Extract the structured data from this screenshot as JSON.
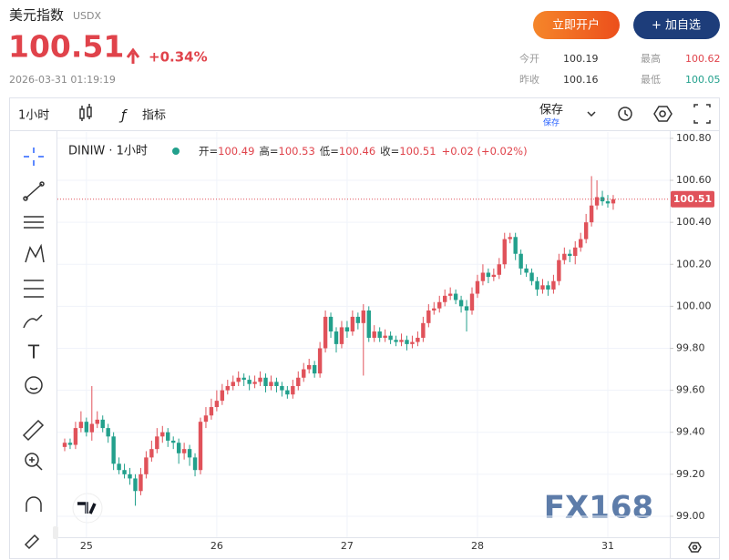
{
  "header": {
    "title": "美元指数",
    "code": "USDX",
    "price": "100.51",
    "change": "+0.34%",
    "time": "2026-03-31 01:19:19",
    "buttons": [
      "立即开户",
      "+ 加自选"
    ],
    "stats": [
      {
        "label": "今开",
        "value": "100.19"
      },
      {
        "label": "最高",
        "value": "100.62"
      },
      {
        "label": "昨收",
        "value": "100.16"
      },
      {
        "label": "最低",
        "value": "100.05"
      }
    ]
  },
  "toolbar": {
    "interval": "1小时",
    "indicators": "指标",
    "save": "保存",
    "save_sub": "保存"
  },
  "chart_data": {
    "type": "candlestick",
    "watermark": "FX168",
    "legend": {
      "symbol": "DINIW · 1小时",
      "labels": [
        "开=",
        "高=",
        "低=",
        "收="
      ],
      "change": "+0.02 (+0.02%)"
    },
    "up_color": "#e0525a",
    "down_color": "#22a08c",
    "grid": true,
    "last_price_line": true,
    "ylim": [
      98.9,
      100.83
    ],
    "yticks": [
      {
        "value": 99,
        "label": "99.00"
      },
      {
        "value": 99.2,
        "label": "99.20"
      },
      {
        "value": 99.4,
        "label": "99.40"
      },
      {
        "value": 99.6,
        "label": "99.60"
      },
      {
        "value": 99.8,
        "label": "99.80"
      },
      {
        "value": 100,
        "label": "100.00"
      },
      {
        "value": 100.2,
        "label": "100.20"
      },
      {
        "value": 100.4,
        "label": "100.40"
      },
      {
        "value": 100.6,
        "label": "100.60"
      },
      {
        "value": 100.8,
        "label": "100.80"
      }
    ],
    "categories": [
      null,
      null,
      null,
      null,
      "25",
      null,
      null,
      null,
      null,
      null,
      null,
      null,
      null,
      null,
      null,
      null,
      null,
      null,
      null,
      null,
      null,
      null,
      null,
      null,
      null,
      null,
      null,
      null,
      "26",
      null,
      null,
      null,
      null,
      null,
      null,
      null,
      null,
      null,
      null,
      null,
      null,
      null,
      null,
      null,
      null,
      null,
      null,
      null,
      null,
      null,
      null,
      null,
      "27",
      null,
      null,
      null,
      null,
      null,
      null,
      null,
      null,
      null,
      null,
      null,
      null,
      null,
      null,
      null,
      null,
      null,
      null,
      null,
      null,
      null,
      null,
      null,
      "28",
      null,
      null,
      null,
      null,
      null,
      null,
      null,
      null,
      null,
      null,
      null,
      null,
      null,
      null,
      null,
      null,
      null,
      null,
      null,
      null,
      null,
      null,
      null,
      "31",
      null
    ],
    "open": [
      99.33,
      99.35,
      99.34,
      99.42,
      99.45,
      99.4,
      99.44,
      99.46,
      99.42,
      99.38,
      99.25,
      99.22,
      99.2,
      99.18,
      99.12,
      99.2,
      99.28,
      99.32,
      99.38,
      99.4,
      99.36,
      99.35,
      99.3,
      99.32,
      99.28,
      99.22,
      99.45,
      99.48,
      99.52,
      99.55,
      99.6,
      99.62,
      99.64,
      99.66,
      99.65,
      99.63,
      99.64,
      99.66,
      99.62,
      99.64,
      99.62,
      99.6,
      99.58,
      99.62,
      99.66,
      99.7,
      99.72,
      99.68,
      99.8,
      99.95,
      99.88,
      99.82,
      99.9,
      99.88,
      99.95,
      99.92,
      99.98,
      99.85,
      99.88,
      99.85,
      99.86,
      99.84,
      99.83,
      99.84,
      99.82,
      99.83,
      99.85,
      99.92,
      99.98,
      99.99,
      100.02,
      100.05,
      100.06,
      100.03,
      100.0,
      99.98,
      100.06,
      100.12,
      100.16,
      100.14,
      100.15,
      100.2,
      100.32,
      100.33,
      100.25,
      100.18,
      100.16,
      100.12,
      100.08,
      100.1,
      100.08,
      100.12,
      100.22,
      100.25,
      100.24,
      100.28,
      100.32,
      100.4,
      100.48,
      100.52,
      100.5,
      100.49
    ],
    "high": [
      99.37,
      99.37,
      99.45,
      99.5,
      99.47,
      99.62,
      99.5,
      99.48,
      99.44,
      99.4,
      99.28,
      99.25,
      99.23,
      99.2,
      99.23,
      99.31,
      99.36,
      99.42,
      99.43,
      99.42,
      99.38,
      99.37,
      99.35,
      99.34,
      99.3,
      99.47,
      99.52,
      99.56,
      99.6,
      99.63,
      99.65,
      99.67,
      99.69,
      99.68,
      99.67,
      99.67,
      99.69,
      99.68,
      99.67,
      99.66,
      99.64,
      99.62,
      99.65,
      99.69,
      99.73,
      99.75,
      99.74,
      99.83,
      99.98,
      99.97,
      99.9,
      99.93,
      99.93,
      99.98,
      99.97,
      100.01,
      100.0,
      99.91,
      99.9,
      99.89,
      99.88,
      99.86,
      99.87,
      99.86,
      99.86,
      99.88,
      99.95,
      100.01,
      100.02,
      100.05,
      100.08,
      100.09,
      100.08,
      100.05,
      100.03,
      100.09,
      100.15,
      100.2,
      100.18,
      100.18,
      100.23,
      100.35,
      100.35,
      100.35,
      100.27,
      100.2,
      100.18,
      100.14,
      100.13,
      100.12,
      100.15,
      100.25,
      100.28,
      100.27,
      100.31,
      100.35,
      100.44,
      100.62,
      100.6,
      100.55,
      100.53,
      100.53
    ],
    "low": [
      99.31,
      99.32,
      99.32,
      99.4,
      99.38,
      99.36,
      99.42,
      99.4,
      99.35,
      99.22,
      99.2,
      99.18,
      99.15,
      99.05,
      99.1,
      99.18,
      99.26,
      99.3,
      99.35,
      99.33,
      99.32,
      99.25,
      99.27,
      99.24,
      99.19,
      99.2,
      99.42,
      99.46,
      99.5,
      99.53,
      99.58,
      99.6,
      99.62,
      99.62,
      99.6,
      99.61,
      99.62,
      99.59,
      99.6,
      99.59,
      99.57,
      99.56,
      99.56,
      99.6,
      99.64,
      99.68,
      99.66,
      99.66,
      99.78,
      99.85,
      99.78,
      99.8,
      99.85,
      99.86,
      99.89,
      99.67,
      99.83,
      99.83,
      99.83,
      99.83,
      99.82,
      99.81,
      99.81,
      99.79,
      99.8,
      99.81,
      99.83,
      99.9,
      99.96,
      99.97,
      100.0,
      100.03,
      100.01,
      99.97,
      99.88,
      99.96,
      100.04,
      100.1,
      100.11,
      100.12,
      100.13,
      100.18,
      100.3,
      100.22,
      100.15,
      100.14,
      100.1,
      100.05,
      100.06,
      100.05,
      100.06,
      100.1,
      100.2,
      100.21,
      100.2,
      100.26,
      100.3,
      100.38,
      100.46,
      100.48,
      100.47,
      100.46
    ],
    "close": [
      99.35,
      99.34,
      99.42,
      99.45,
      99.4,
      99.44,
      99.46,
      99.42,
      99.38,
      99.25,
      99.22,
      99.2,
      99.18,
      99.12,
      99.2,
      99.28,
      99.32,
      99.38,
      99.4,
      99.36,
      99.35,
      99.3,
      99.32,
      99.28,
      99.22,
      99.45,
      99.48,
      99.52,
      99.55,
      99.6,
      99.62,
      99.64,
      99.66,
      99.65,
      99.63,
      99.64,
      99.66,
      99.62,
      99.64,
      99.62,
      99.6,
      99.58,
      99.62,
      99.66,
      99.7,
      99.72,
      99.68,
      99.8,
      99.95,
      99.88,
      99.82,
      99.9,
      99.88,
      99.95,
      99.92,
      99.98,
      99.85,
      99.88,
      99.85,
      99.86,
      99.84,
      99.83,
      99.84,
      99.82,
      99.83,
      99.85,
      99.92,
      99.98,
      99.99,
      100.02,
      100.05,
      100.06,
      100.03,
      100.0,
      99.98,
      100.06,
      100.12,
      100.16,
      100.14,
      100.15,
      100.2,
      100.32,
      100.33,
      100.25,
      100.18,
      100.16,
      100.12,
      100.08,
      100.1,
      100.08,
      100.12,
      100.22,
      100.25,
      100.24,
      100.28,
      100.32,
      100.4,
      100.48,
      100.52,
      100.5,
      100.49,
      100.51
    ]
  }
}
